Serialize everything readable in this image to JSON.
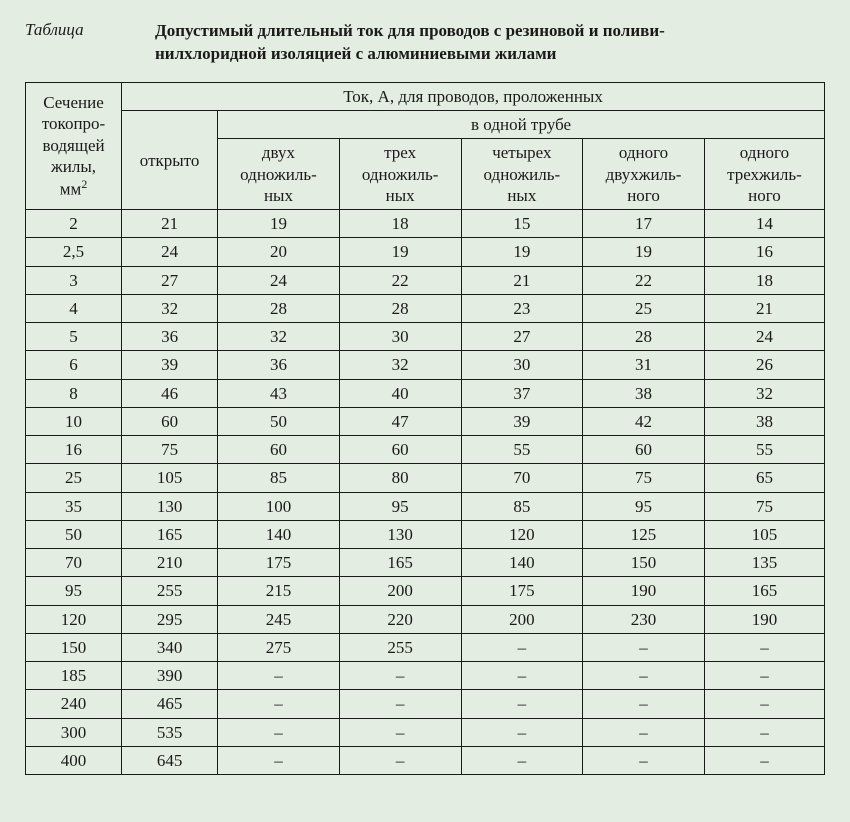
{
  "background_color": "#e4ede1",
  "text_color": "#1a1a1a",
  "border_color": "#1a1a1a",
  "font_family": "Georgia, 'Times New Roman', serif",
  "font_size_body": 17,
  "font_size_header": 17,
  "table_label": "Таблица",
  "table_title_line1": "Допустимый длительный ток для проводов с резиновой и поливи-",
  "table_title_line2": "нилхлоридной изоляцией с алюминиевыми жилами",
  "headers": {
    "col0_l1": "Сечение",
    "col0_l2": "токопро-",
    "col0_l3": "водящей",
    "col0_l4": "жилы,",
    "col0_l5_a": "мм",
    "col0_l5_b": "2",
    "top_span": "Ток, А, для проводов, проложенных",
    "sub_span": "в одной трубе",
    "col1": "открыто",
    "col2_l1": "двух",
    "col2_l2": "одножиль-",
    "col2_l3": "ных",
    "col3_l1": "трех",
    "col3_l2": "одножиль-",
    "col3_l3": "ных",
    "col4_l1": "четырех",
    "col4_l2": "одножиль-",
    "col4_l3": "ных",
    "col5_l1": "одного",
    "col5_l2": "двухжиль-",
    "col5_l3": "ного",
    "col6_l1": "одного",
    "col6_l2": "трехжиль-",
    "col6_l3": "ного"
  },
  "rows": [
    [
      "2",
      "21",
      "19",
      "18",
      "15",
      "17",
      "14"
    ],
    [
      "2,5",
      "24",
      "20",
      "19",
      "19",
      "19",
      "16"
    ],
    [
      "3",
      "27",
      "24",
      "22",
      "21",
      "22",
      "18"
    ],
    [
      "4",
      "32",
      "28",
      "28",
      "23",
      "25",
      "21"
    ],
    [
      "5",
      "36",
      "32",
      "30",
      "27",
      "28",
      "24"
    ],
    [
      "6",
      "39",
      "36",
      "32",
      "30",
      "31",
      "26"
    ],
    [
      "8",
      "46",
      "43",
      "40",
      "37",
      "38",
      "32"
    ],
    [
      "10",
      "60",
      "50",
      "47",
      "39",
      "42",
      "38"
    ],
    [
      "16",
      "75",
      "60",
      "60",
      "55",
      "60",
      "55"
    ],
    [
      "25",
      "105",
      "85",
      "80",
      "70",
      "75",
      "65"
    ],
    [
      "35",
      "130",
      "100",
      "95",
      "85",
      "95",
      "75"
    ],
    [
      "50",
      "165",
      "140",
      "130",
      "120",
      "125",
      "105"
    ],
    [
      "70",
      "210",
      "175",
      "165",
      "140",
      "150",
      "135"
    ],
    [
      "95",
      "255",
      "215",
      "200",
      "175",
      "190",
      "165"
    ],
    [
      "120",
      "295",
      "245",
      "220",
      "200",
      "230",
      "190"
    ],
    [
      "150",
      "340",
      "275",
      "255",
      "–",
      "–",
      "–"
    ],
    [
      "185",
      "390",
      "–",
      "–",
      "–",
      "–",
      "–"
    ],
    [
      "240",
      "465",
      "–",
      "–",
      "–",
      "–",
      "–"
    ],
    [
      "300",
      "535",
      "–",
      "–",
      "–",
      "–",
      "–"
    ],
    [
      "400",
      "645",
      "–",
      "–",
      "–",
      "–",
      "–"
    ]
  ]
}
